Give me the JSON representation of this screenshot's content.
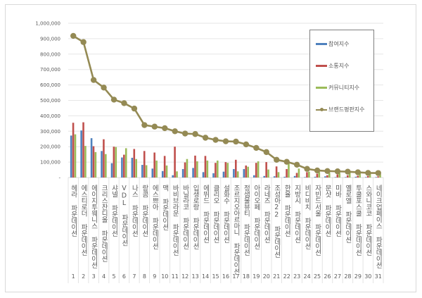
{
  "chart_data": {
    "type": "bar+line",
    "title": "",
    "xlabel": "",
    "ylabel": "",
    "ylim": [
      0,
      1000000
    ],
    "y_ticks": [
      "-",
      "100,000",
      "200,000",
      "300,000",
      "400,000",
      "500,000",
      "600,000",
      "700,000",
      "800,000",
      "900,000",
      "1,000,000"
    ],
    "grid": true,
    "legend_position": "upper-right",
    "categories": [
      "헤라 파운데이션",
      "에스티로더 파운데이션",
      "에이지투웨니스 파운데이션",
      "크리스찬디올 파운데이션",
      "샤넬 파운데이션",
      "VDL 파운데이션",
      "나스 파운데이션",
      "랑콤 파운데이션",
      "에스쁘아 파운데이션",
      "맥 파운데이션",
      "바비브라운 파운데이션",
      "바닐라코 파운데이션",
      "입생로랑 파운데이션",
      "에뛰드 파운데이션",
      "클리오 파운데이션",
      "설화수 파운데이션",
      "조르지오아르마니 파운데이션",
      "정샘물뷰티 파운데이션",
      "아이오페 파운데이션",
      "라네즈 파운데이션",
      "조성아22 파운데이션",
      "한율 파운데이션",
      "지방시 파운데이션",
      "비디비치 파운데이션",
      "자빈드서울 파운데이션",
      "문샷 파운데이션",
      "미바 파운데이션",
      "옐로엘 파운데이션",
      "투쿨포스쿨 파운데이션",
      "스와니코코 파운데이션",
      "네이크업페이스 파운데이션"
    ],
    "rank_numbers": [
      "1",
      "2",
      "3",
      "4",
      "5",
      "6",
      "7",
      "8",
      "9",
      "10",
      "11",
      "12",
      "13",
      "14",
      "15",
      "16",
      "17",
      "18",
      "19",
      "20",
      "21",
      "22",
      "23",
      "24",
      "25",
      "26",
      "27",
      "28",
      "29",
      "30",
      "31"
    ],
    "series": [
      {
        "name": "참여지수",
        "type": "bar",
        "color": "#4f81bd",
        "values": [
          272000,
          305000,
          255000,
          172000,
          93000,
          130000,
          128000,
          82000,
          58000,
          42000,
          15000,
          55000,
          62000,
          35000,
          28000,
          38000,
          55000,
          55000,
          15000,
          10000,
          8000,
          5000,
          10000,
          3000,
          5000,
          8000,
          3000,
          3000,
          5000,
          3000,
          3000
        ]
      },
      {
        "name": "소통지수",
        "type": "bar",
        "color": "#c0504d",
        "values": [
          355000,
          358000,
          203000,
          248000,
          200000,
          148000,
          185000,
          172000,
          162000,
          140000,
          200000,
          98000,
          142000,
          140000,
          95000,
          100000,
          115000,
          78000,
          95000,
          100000,
          72000,
          55000,
          30000,
          35000,
          25000,
          15000,
          20000,
          15000,
          12000,
          10000,
          8000
        ]
      },
      {
        "name": "커뮤니티지수",
        "type": "bar",
        "color": "#9bbb59",
        "values": [
          280000,
          205000,
          165000,
          152000,
          198000,
          190000,
          120000,
          80000,
          110000,
          78000,
          40000,
          120000,
          105000,
          110000,
          110000,
          95000,
          40000,
          70000,
          105000,
          52000,
          35000,
          105000,
          58000,
          38000,
          35000,
          30000,
          28000,
          32000,
          28000,
          25000,
          22000
        ]
      },
      {
        "name": "브랜드평판지수",
        "type": "line",
        "color": "#948a54",
        "values": [
          918000,
          878000,
          632000,
          583000,
          505000,
          482000,
          447000,
          340000,
          330000,
          320000,
          300000,
          285000,
          282000,
          258000,
          244000,
          235000,
          233000,
          215000,
          192000,
          165000,
          115000,
          102000,
          83000,
          56000,
          46000,
          42000,
          40000,
          38000,
          34000,
          30000,
          29000
        ]
      }
    ]
  },
  "legend": {
    "items": [
      {
        "label": "참여지수",
        "color": "#4f81bd"
      },
      {
        "label": "소통지수",
        "color": "#c0504d"
      },
      {
        "label": "커뮤니티지수",
        "color": "#9bbb59"
      },
      {
        "label": "브랜드평판지수",
        "color": "#948a54"
      }
    ]
  }
}
